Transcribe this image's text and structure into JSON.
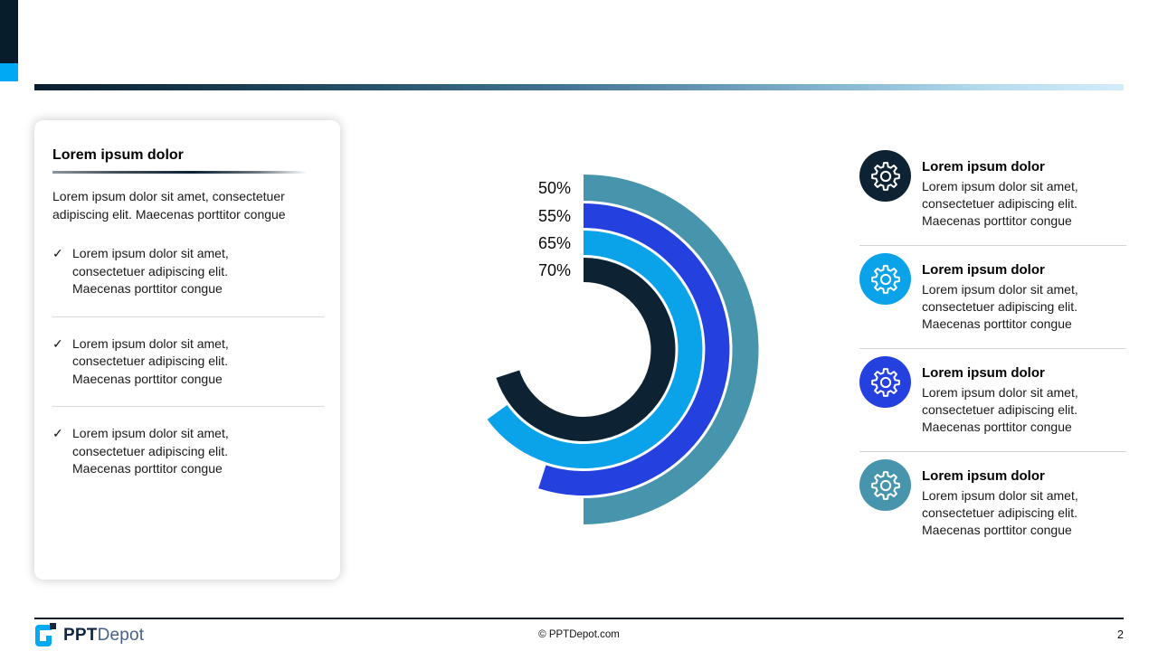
{
  "card": {
    "title": "Lorem ipsum dolor",
    "paragraph": "Lorem ipsum dolor sit amet, consectetuer adipiscing elit. Maecenas porttitor congue",
    "check_glyph": "✓",
    "bullets": [
      "Lorem ipsum dolor sit amet, consectetuer adipiscing elit. Maecenas porttitor congue",
      "Lorem ipsum dolor sit amet, consectetuer adipiscing elit. Maecenas porttitor congue",
      "Lorem ipsum dolor sit amet, consectetuer adipiscing elit. Maecenas porttitor congue"
    ]
  },
  "chart_data": {
    "type": "radial-bar",
    "title": "",
    "max": 100,
    "start_angle_deg": 0,
    "direction": "clockwise",
    "values": [
      50,
      55,
      65,
      70
    ],
    "labels": [
      "50%",
      "55%",
      "65%",
      "70%"
    ],
    "colors": [
      "#4795ac",
      "#2440df",
      "#0aa3e9",
      "#0d2233"
    ],
    "order_note": "values[0] is the outermost ring; all rings start at 12 o'clock and sweep clockwise"
  },
  "features": [
    {
      "icon": "gear-icon",
      "color": "#0d2233",
      "title": "Lorem ipsum dolor",
      "body": "Lorem ipsum dolor sit amet, consectetuer adipiscing elit. Maecenas porttitor congue"
    },
    {
      "icon": "gear-icon",
      "color": "#0aa3e9",
      "title": "Lorem ipsum dolor",
      "body": "Lorem ipsum dolor sit amet, consectetuer adipiscing elit. Maecenas porttitor congue"
    },
    {
      "icon": "gear-icon",
      "color": "#2440df",
      "title": "Lorem ipsum dolor",
      "body": "Lorem ipsum dolor sit amet, consectetuer adipiscing elit. Maecenas porttitor congue"
    },
    {
      "icon": "gear-icon",
      "color": "#4795ac",
      "title": "Lorem ipsum dolor",
      "body": "Lorem ipsum dolor sit amet, consectetuer adipiscing elit. Maecenas porttitor congue"
    }
  ],
  "accents": {
    "corner_navy": "#081d2c",
    "corner_cyan": "#00a9f4",
    "gradient_bar_left": "#0a1e2d",
    "gradient_bar_right": "#d3ecfa"
  },
  "footer": {
    "logo_bold": "PPT",
    "logo_light": "Depot",
    "copyright": "© PPTDepot.com",
    "page_number": "2"
  }
}
